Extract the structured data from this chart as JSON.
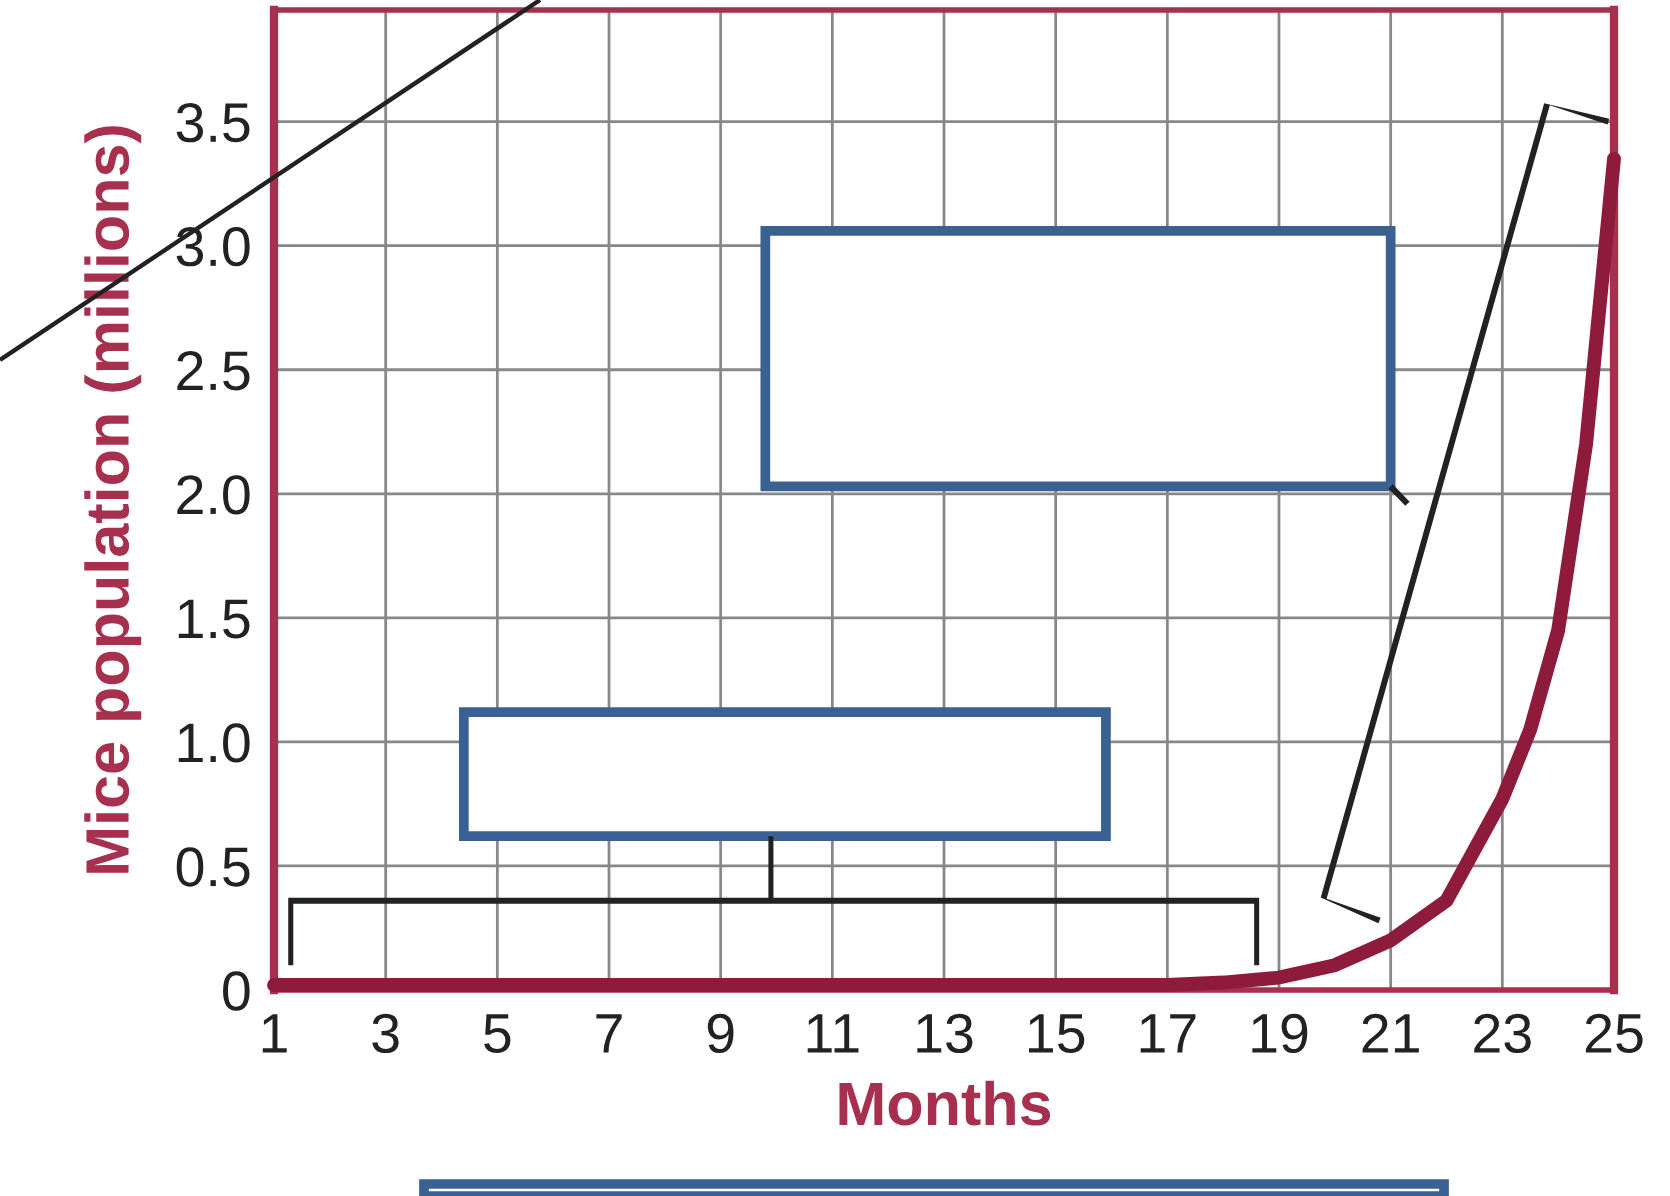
{
  "chart_data": {
    "type": "line",
    "xlabel": "Months",
    "ylabel": "Mice population (millions)",
    "x": [
      1,
      3,
      5,
      7,
      9,
      11,
      13,
      15,
      17,
      18,
      19,
      20,
      21,
      22,
      23,
      23.5,
      24,
      24.5,
      25
    ],
    "series": [
      {
        "color": "#8e1b3b",
        "values": [
          0.02,
          0.02,
          0.02,
          0.02,
          0.02,
          0.02,
          0.02,
          0.02,
          0.02,
          0.03,
          0.05,
          0.1,
          0.2,
          0.36,
          0.77,
          1.05,
          1.45,
          2.2,
          3.35
        ]
      }
    ],
    "xlim": [
      1,
      25
    ],
    "xticks": [
      1,
      3,
      5,
      7,
      9,
      11,
      13,
      15,
      17,
      19,
      21,
      23,
      25
    ],
    "ylim": [
      0,
      3.95
    ],
    "yticks": [
      0,
      {
        "value": 0.5,
        "label": "0.5"
      },
      {
        "value": 1,
        "label": "1.0"
      },
      {
        "value": 1.5,
        "label": "1.5"
      },
      {
        "value": 2,
        "label": "2.0"
      },
      {
        "value": 2.5,
        "label": "2.5"
      },
      {
        "value": 3,
        "label": "3.0"
      },
      {
        "value": 3.5,
        "label": "3.5"
      }
    ],
    "grid": true,
    "marker": "none",
    "line_style": "solid"
  }
}
